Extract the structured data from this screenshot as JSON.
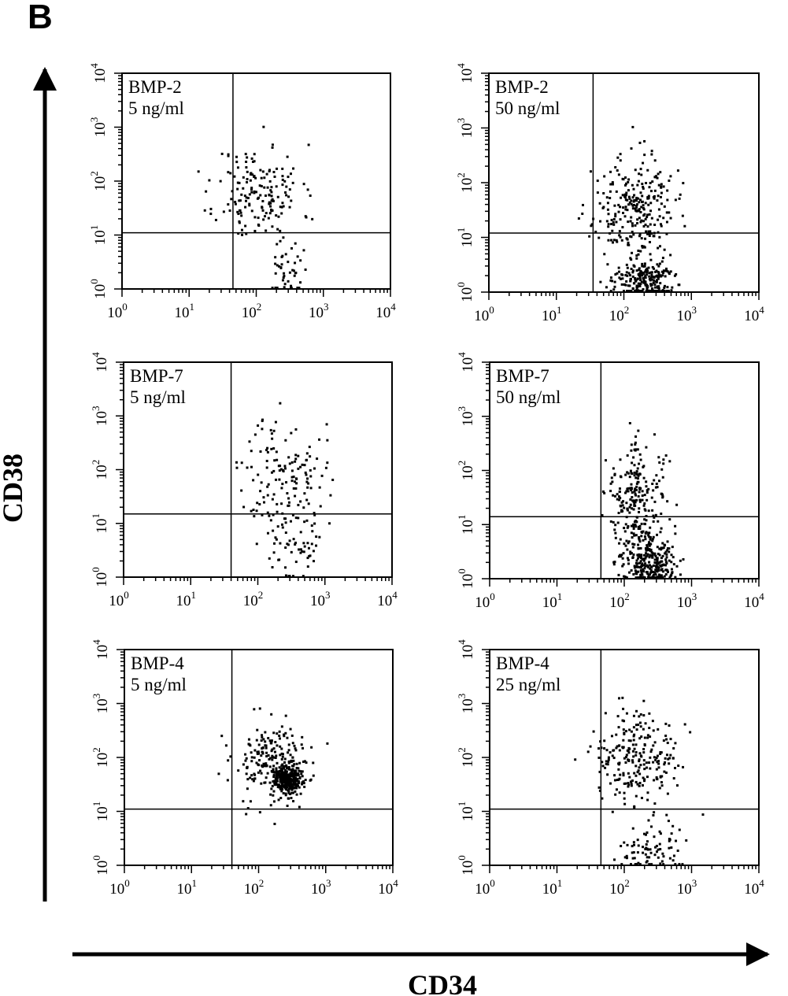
{
  "figure": {
    "panel_label": "B",
    "y_axis_title": "CD38",
    "x_axis_title": "CD34",
    "tick_labels": [
      "10",
      "10",
      "10",
      "10",
      "10"
    ],
    "tick_exponents": [
      "0",
      "1",
      "2",
      "3",
      "4"
    ]
  },
  "chart_data": [
    {
      "type": "scatter",
      "title_line1": "BMP-2",
      "title_line2": "5 ng/ml",
      "xlabel": "CD34",
      "ylabel": "CD38",
      "x_scale": "log",
      "y_scale": "log",
      "xlim": [
        1,
        10000
      ],
      "ylim": [
        1,
        10000
      ],
      "gate": {
        "x": 45,
        "y": 11
      },
      "clusters": [
        {
          "x": 110,
          "y": 60,
          "sx": 0.32,
          "sy": 0.45,
          "n": 170
        },
        {
          "x": 300,
          "y": 2.5,
          "sx": 0.15,
          "sy": 0.3,
          "n": 45
        }
      ],
      "seed": 11
    },
    {
      "type": "scatter",
      "title_line1": "BMP-2",
      "title_line2": "50 ng/ml",
      "xlabel": "CD34",
      "ylabel": "CD38",
      "x_scale": "log",
      "y_scale": "log",
      "xlim": [
        1,
        10000
      ],
      "ylim": [
        1,
        10000
      ],
      "gate": {
        "x": 35,
        "y": 12
      },
      "clusters": [
        {
          "x": 140,
          "y": 30,
          "sx": 0.3,
          "sy": 0.5,
          "n": 280
        },
        {
          "x": 200,
          "y": 1.6,
          "sx": 0.22,
          "sy": 0.2,
          "n": 220
        }
      ],
      "seed": 23
    },
    {
      "type": "scatter",
      "title_line1": "BMP-7",
      "title_line2": "5 ng/ml",
      "xlabel": "CD34",
      "ylabel": "CD38",
      "x_scale": "log",
      "y_scale": "log",
      "xlim": [
        1,
        10000
      ],
      "ylim": [
        1,
        10000
      ],
      "gate": {
        "x": 40,
        "y": 15
      },
      "clusters": [
        {
          "x": 250,
          "y": 60,
          "sx": 0.3,
          "sy": 0.6,
          "n": 160
        },
        {
          "x": 350,
          "y": 3,
          "sx": 0.18,
          "sy": 0.35,
          "n": 40
        }
      ],
      "seed": 37
    },
    {
      "type": "scatter",
      "title_line1": "BMP-7",
      "title_line2": "50 ng/ml",
      "xlabel": "CD34",
      "ylabel": "CD38",
      "x_scale": "log",
      "y_scale": "log",
      "xlim": [
        1,
        10000
      ],
      "ylim": [
        1,
        10000
      ],
      "gate": {
        "x": 45,
        "y": 14
      },
      "clusters": [
        {
          "x": 160,
          "y": 25,
          "sx": 0.22,
          "sy": 0.55,
          "n": 260
        },
        {
          "x": 240,
          "y": 1.8,
          "sx": 0.2,
          "sy": 0.25,
          "n": 260
        }
      ],
      "seed": 41
    },
    {
      "type": "scatter",
      "title_line1": "BMP-4",
      "title_line2": "5 ng/ml",
      "xlabel": "CD34",
      "ylabel": "CD38",
      "x_scale": "log",
      "y_scale": "log",
      "xlim": [
        1,
        10000
      ],
      "ylim": [
        1,
        10000
      ],
      "gate": {
        "x": 40,
        "y": 11
      },
      "clusters": [
        {
          "x": 160,
          "y": 80,
          "sx": 0.3,
          "sy": 0.4,
          "n": 200
        },
        {
          "x": 280,
          "y": 38,
          "sx": 0.12,
          "sy": 0.13,
          "n": 300
        }
      ],
      "seed": 53
    },
    {
      "type": "scatter",
      "title_line1": "BMP-4",
      "title_line2": "25 ng/ml",
      "xlabel": "CD34",
      "ylabel": "CD38",
      "x_scale": "log",
      "y_scale": "log",
      "xlim": [
        1,
        10000
      ],
      "ylim": [
        1,
        10000
      ],
      "gate": {
        "x": 45,
        "y": 11
      },
      "clusters": [
        {
          "x": 140,
          "y": 80,
          "sx": 0.3,
          "sy": 0.45,
          "n": 240
        },
        {
          "x": 250,
          "y": 1.8,
          "sx": 0.2,
          "sy": 0.25,
          "n": 80
        }
      ],
      "seed": 67
    }
  ]
}
